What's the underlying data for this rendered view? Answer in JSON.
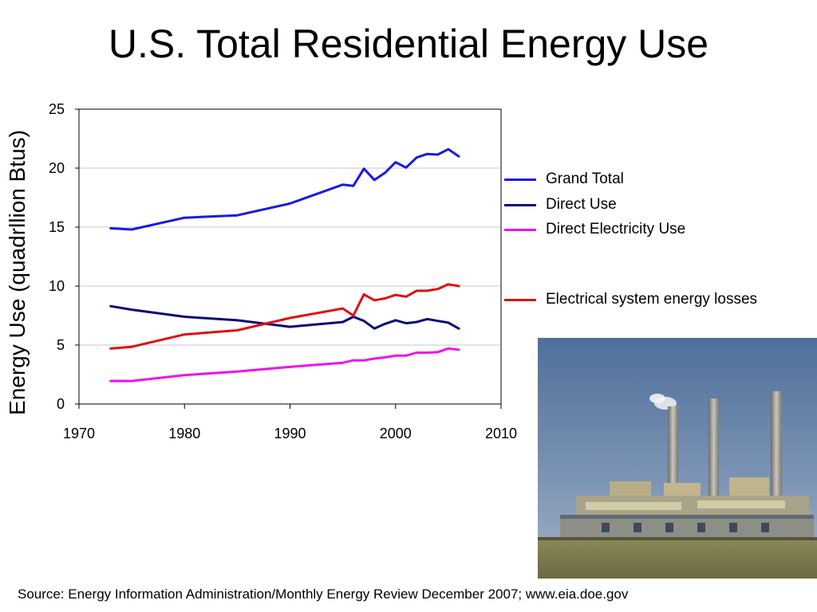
{
  "slide": {
    "title": "U.S. Total Residential Energy Use",
    "source": "Source: Energy Information Administration/Monthly Energy Review December 2007; www.eia.doe.gov"
  },
  "photo": {
    "subject": "power plant with three smokestacks"
  },
  "chart_data": {
    "type": "line",
    "title": "",
    "xlabel": "",
    "ylabel": "Energy Use (quadrllion Btus)",
    "xlim": [
      1970,
      2010
    ],
    "ylim": [
      0,
      25
    ],
    "xticks": [
      "1970",
      "1980",
      "1990",
      "2000",
      "2010"
    ],
    "yticks": [
      "0",
      "5",
      "10",
      "15",
      "20",
      "25"
    ],
    "grid": "horizontal",
    "legend_position": "right",
    "x": [
      1973,
      1975,
      1980,
      1985,
      1990,
      1995,
      1996,
      1997,
      1998,
      1999,
      2000,
      2001,
      2002,
      2003,
      2004,
      2005,
      2006
    ],
    "series": [
      {
        "name": "Grand Total",
        "color": "#1a1ae0",
        "values": [
          14.9,
          14.8,
          15.8,
          16.0,
          17.0,
          18.6,
          18.5,
          19.95,
          19.0,
          19.6,
          20.5,
          20.05,
          20.9,
          21.2,
          21.15,
          21.6,
          21.0
        ]
      },
      {
        "name": "Direct Use",
        "color": "#0a0a78",
        "values": [
          8.3,
          8.0,
          7.4,
          7.1,
          6.55,
          6.95,
          7.4,
          7.05,
          6.4,
          6.8,
          7.1,
          6.85,
          6.95,
          7.2,
          7.05,
          6.9,
          6.4
        ]
      },
      {
        "name": "Direct Electricity Use",
        "color": "#ee11ee",
        "values": [
          1.95,
          1.95,
          2.45,
          2.75,
          3.15,
          3.5,
          3.7,
          3.7,
          3.85,
          3.95,
          4.1,
          4.1,
          4.35,
          4.35,
          4.4,
          4.7,
          4.6
        ]
      },
      {
        "name": "Electrical system energy losses",
        "color": "#e01010",
        "values": [
          4.7,
          4.85,
          5.9,
          6.25,
          7.3,
          8.1,
          7.5,
          9.3,
          8.8,
          8.95,
          9.25,
          9.1,
          9.6,
          9.6,
          9.75,
          10.15,
          10.0
        ]
      }
    ]
  }
}
